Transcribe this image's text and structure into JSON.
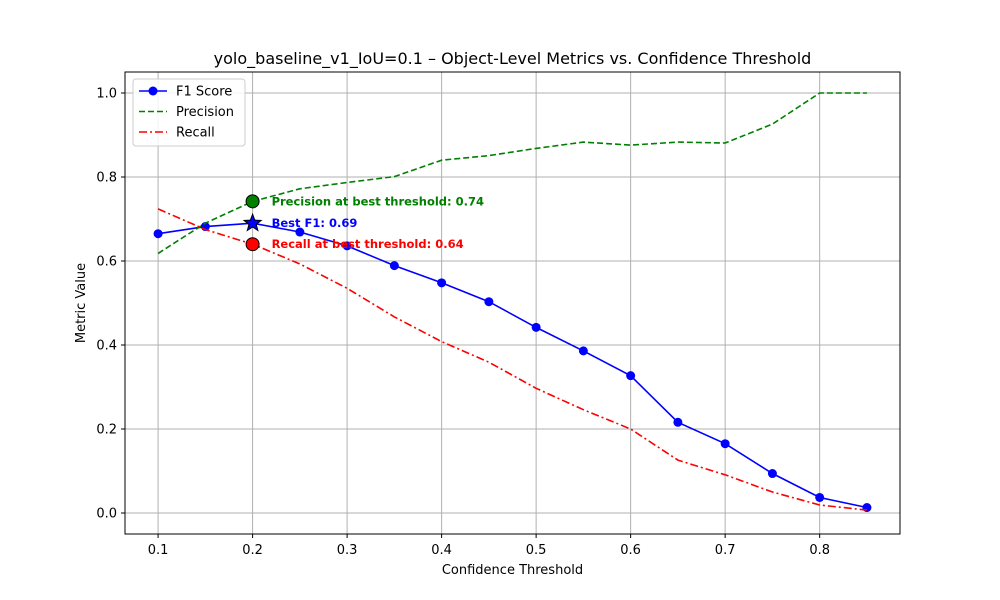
{
  "chart_data": {
    "type": "line",
    "title": "yolo_baseline_v1_IoU=0.1 – Object-Level Metrics vs. Confidence Threshold",
    "xlabel": "Confidence Threshold",
    "ylabel": "Metric Value",
    "xlim": [
      0.065,
      0.885
    ],
    "ylim": [
      -0.05,
      1.05
    ],
    "xticks": [
      0.1,
      0.2,
      0.3,
      0.4,
      0.5,
      0.6,
      0.7,
      0.8
    ],
    "xtick_labels": [
      "0.1",
      "0.2",
      "0.3",
      "0.4",
      "0.5",
      "0.6",
      "0.7",
      "0.8"
    ],
    "yticks": [
      0.0,
      0.2,
      0.4,
      0.6,
      0.8,
      1.0
    ],
    "ytick_labels": [
      "0.0",
      "0.2",
      "0.4",
      "0.6",
      "0.8",
      "1.0"
    ],
    "grid": true,
    "legend_position": "top-left",
    "x": [
      0.1,
      0.15,
      0.2,
      0.25,
      0.3,
      0.35,
      0.4,
      0.45,
      0.5,
      0.55,
      0.6,
      0.65,
      0.7,
      0.75,
      0.8,
      0.85
    ],
    "series": [
      {
        "name": "F1 Score",
        "color": "#0000ff",
        "style": "solid",
        "marker": "circle",
        "values": [
          0.665,
          0.682,
          0.69,
          0.669,
          0.636,
          0.589,
          0.548,
          0.503,
          0.442,
          0.386,
          0.327,
          0.216,
          0.165,
          0.094,
          0.037,
          0.013
        ]
      },
      {
        "name": "Precision",
        "color": "#008000",
        "style": "dashed",
        "marker": "none",
        "values": [
          0.618,
          0.69,
          0.742,
          0.772,
          0.787,
          0.801,
          0.84,
          0.851,
          0.868,
          0.883,
          0.876,
          0.883,
          0.881,
          0.926,
          1.0,
          1.0
        ]
      },
      {
        "name": "Recall",
        "color": "#ff0000",
        "style": "dashdot",
        "marker": "none",
        "values": [
          0.724,
          0.675,
          0.64,
          0.593,
          0.535,
          0.467,
          0.408,
          0.359,
          0.297,
          0.246,
          0.2,
          0.126,
          0.091,
          0.05,
          0.019,
          0.007
        ]
      }
    ],
    "annotations": [
      {
        "text": "Precision at best threshold: 0.74",
        "x": 0.2,
        "y": 0.742,
        "color": "#008000",
        "marker": "circle"
      },
      {
        "text": "Best F1: 0.69",
        "x": 0.2,
        "y": 0.69,
        "color": "#0000ff",
        "marker": "star"
      },
      {
        "text": "Recall at best threshold: 0.64",
        "x": 0.2,
        "y": 0.64,
        "color": "#ff0000",
        "marker": "circle"
      }
    ]
  }
}
